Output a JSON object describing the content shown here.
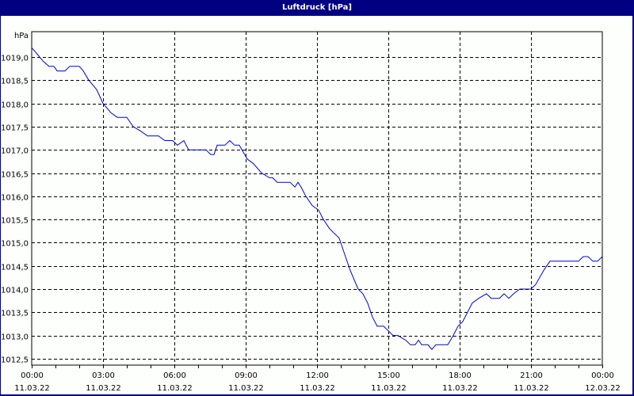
{
  "window": {
    "title": "Luftdruck [hPa]"
  },
  "colors": {
    "titlebar": "#000080",
    "background": "#fdfffd",
    "line": "#0000cc",
    "grid": "#000000",
    "axis": "#000000"
  },
  "chart_data": {
    "type": "line",
    "title": "Luftdruck [hPa]",
    "xlabel": "",
    "ylabel": "hPa",
    "ylim": [
      1012.3,
      1019.55
    ],
    "xlim_hours": [
      0,
      24
    ],
    "grid": true,
    "legend": null,
    "y_ticks": [
      "1019,0",
      "1018,5",
      "1018,0",
      "1017,5",
      "1017,0",
      "1016,5",
      "1016,0",
      "1015,5",
      "1015,0",
      "1014,5",
      "1014,0",
      "1013,5",
      "1013,0",
      "1012,5"
    ],
    "y_tick_values": [
      1019.0,
      1018.5,
      1018.0,
      1017.5,
      1017.0,
      1016.5,
      1016.0,
      1015.5,
      1015.0,
      1014.5,
      1014.0,
      1013.5,
      1013.0,
      1012.5
    ],
    "x_ticks": [
      {
        "time": "00:00",
        "date": "11.03.22",
        "hour": 0
      },
      {
        "time": "03:00",
        "date": "11.03.22",
        "hour": 3
      },
      {
        "time": "06:00",
        "date": "11.03.22",
        "hour": 6
      },
      {
        "time": "09:00",
        "date": "11.03.22",
        "hour": 9
      },
      {
        "time": "12:00",
        "date": "11.03.22",
        "hour": 12
      },
      {
        "time": "15:00",
        "date": "11.03.22",
        "hour": 15
      },
      {
        "time": "18:00",
        "date": "11.03.22",
        "hour": 18
      },
      {
        "time": "21:00",
        "date": "11.03.22",
        "hour": 21
      },
      {
        "time": "00:00",
        "date": "12.03.22",
        "hour": 24
      }
    ],
    "series": [
      {
        "name": "Luftdruck",
        "unit": "hPa",
        "x_hours": [
          0.0,
          0.17,
          0.33,
          0.5,
          0.73,
          0.93,
          1.07,
          1.27,
          1.4,
          1.6,
          2.0,
          2.17,
          2.4,
          2.73,
          3.0,
          3.33,
          3.6,
          4.0,
          4.27,
          4.6,
          4.87,
          5.33,
          5.6,
          5.93,
          6.13,
          6.4,
          6.6,
          7.33,
          7.53,
          7.67,
          7.8,
          8.13,
          8.33,
          8.53,
          8.73,
          9.07,
          9.33,
          9.67,
          10.0,
          10.13,
          10.33,
          10.6,
          10.87,
          11.07,
          11.2,
          11.33,
          11.53,
          11.8,
          12.07,
          12.27,
          12.53,
          12.73,
          12.93,
          13.13,
          13.4,
          13.73,
          13.93,
          14.13,
          14.33,
          14.53,
          14.8,
          15.0,
          15.2,
          15.4,
          15.73,
          15.93,
          16.13,
          16.27,
          16.4,
          16.67,
          16.83,
          17.0,
          17.5,
          17.73,
          17.93,
          18.13,
          18.33,
          18.53,
          18.8,
          19.13,
          19.33,
          19.67,
          19.87,
          20.07,
          20.27,
          20.53,
          21.0,
          21.2,
          21.53,
          21.8,
          23.0,
          23.2,
          23.4,
          23.6,
          23.8,
          24.0
        ],
        "values": [
          1019.2,
          1019.1,
          1019.0,
          1018.9,
          1018.8,
          1018.8,
          1018.7,
          1018.7,
          1018.7,
          1018.8,
          1018.8,
          1018.7,
          1018.5,
          1018.3,
          1018.0,
          1017.8,
          1017.7,
          1017.7,
          1017.5,
          1017.4,
          1017.3,
          1017.3,
          1017.2,
          1017.2,
          1017.1,
          1017.2,
          1017.0,
          1017.0,
          1016.9,
          1016.9,
          1017.1,
          1017.1,
          1017.2,
          1017.1,
          1017.1,
          1016.8,
          1016.7,
          1016.5,
          1016.4,
          1016.4,
          1016.3,
          1016.3,
          1016.3,
          1016.2,
          1016.3,
          1016.2,
          1016.0,
          1015.8,
          1015.7,
          1015.5,
          1015.3,
          1015.2,
          1015.1,
          1014.8,
          1014.4,
          1014.0,
          1013.9,
          1013.7,
          1013.4,
          1013.2,
          1013.2,
          1013.1,
          1013.0,
          1013.0,
          1012.9,
          1012.8,
          1012.8,
          1012.9,
          1012.8,
          1012.8,
          1012.7,
          1012.8,
          1012.8,
          1013.0,
          1013.2,
          1013.3,
          1013.5,
          1013.7,
          1013.8,
          1013.9,
          1013.8,
          1013.8,
          1013.9,
          1013.8,
          1013.9,
          1014.0,
          1014.0,
          1014.1,
          1014.4,
          1014.6,
          1014.6,
          1014.7,
          1014.7,
          1014.6,
          1014.6,
          1014.7
        ]
      }
    ]
  }
}
